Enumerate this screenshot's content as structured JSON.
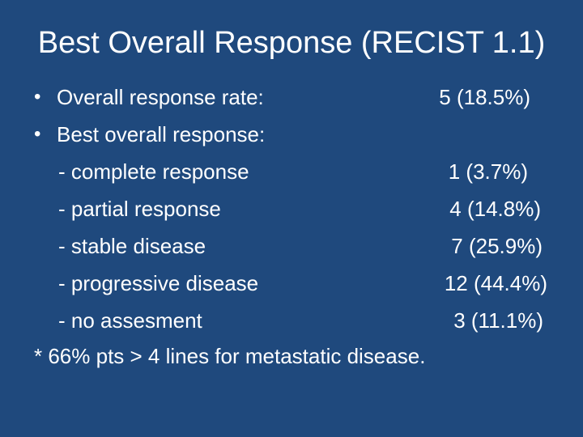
{
  "title": "Best Overall Response (RECIST 1.1)",
  "bullets": [
    {
      "label": "Overall response rate:",
      "value": "5 (18.5%)"
    },
    {
      "label": "Best overall response:",
      "value": ""
    }
  ],
  "sub_items": [
    {
      "label": "- complete response",
      "value": "1 (3.7%)"
    },
    {
      "label": "- partial response",
      "value": "4 (14.8%)"
    },
    {
      "label": "- stable disease",
      "value": "7 (25.9%)"
    },
    {
      "label": "- progressive disease",
      "value": "12 (44.4%)"
    },
    {
      "label": "- no assesment",
      "value": "3 (11.1%)"
    }
  ],
  "footnote": "* 66% pts > 4 lines for metastatic disease.",
  "colors": {
    "background": "#1f497d",
    "text": "#ffffff"
  }
}
